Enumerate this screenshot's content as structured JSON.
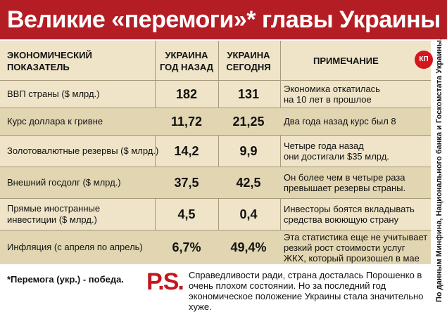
{
  "title": "Великие «перемоги»* главы Украины",
  "header": {
    "indicator": "ЭКОНОМИЧЕСКИЙ\nПОКАЗАТЕЛЬ",
    "ago": "УКРАИНА\nГОД НАЗАД",
    "today": "УКРАИНА\nСЕГОДНЯ",
    "note": "ПРИМЕЧАНИЕ"
  },
  "logo_text": "КП",
  "rows": [
    {
      "indicator": "ВВП страны ($ млрд.)",
      "ago": "182",
      "today": "131",
      "note": "Экономика откатилась\nна 10 лет в прошлое"
    },
    {
      "indicator": "Курс доллара к гривне",
      "ago": "11,72",
      "today": "21,25",
      "note": "Два года назад курс был 8"
    },
    {
      "indicator": "Золотовалютные резервы ($ млрд.)",
      "ago": "14,2",
      "today": "9,9",
      "note": "Четыре года назад\nони достигали $35 млрд."
    },
    {
      "indicator": "Внешний госдолг ($ млрд.)",
      "ago": "37,5",
      "today": "42,5",
      "note": "Он более чем в четыре раза\nпревышает резервы страны."
    },
    {
      "indicator": "Прямые иностранные\nинвестиции ($ млрд.)",
      "ago": "4,5",
      "today": "0,4",
      "note": "Инвесторы боятся вкладывать\nсредства воюющую страну"
    },
    {
      "indicator": "Инфляция (с апреля по апрель)",
      "ago": "6,7%",
      "today": "49,4%",
      "note": "Эта статистика еще не учитывает\nрезкий рост стоимости услуг\nЖКХ, который произошел в мае"
    }
  ],
  "side_note": "По данным Минфина, Национального банка и Госкомстата Украины.",
  "footnote": "*Перемога (укр.) - победа.",
  "ps_label": "P.S.",
  "ps_text": "Справедливости ради, страна досталась Порошенко в очень плохом состоянии. Но за последний год экономическое положение Украины стала значительно хуже."
}
